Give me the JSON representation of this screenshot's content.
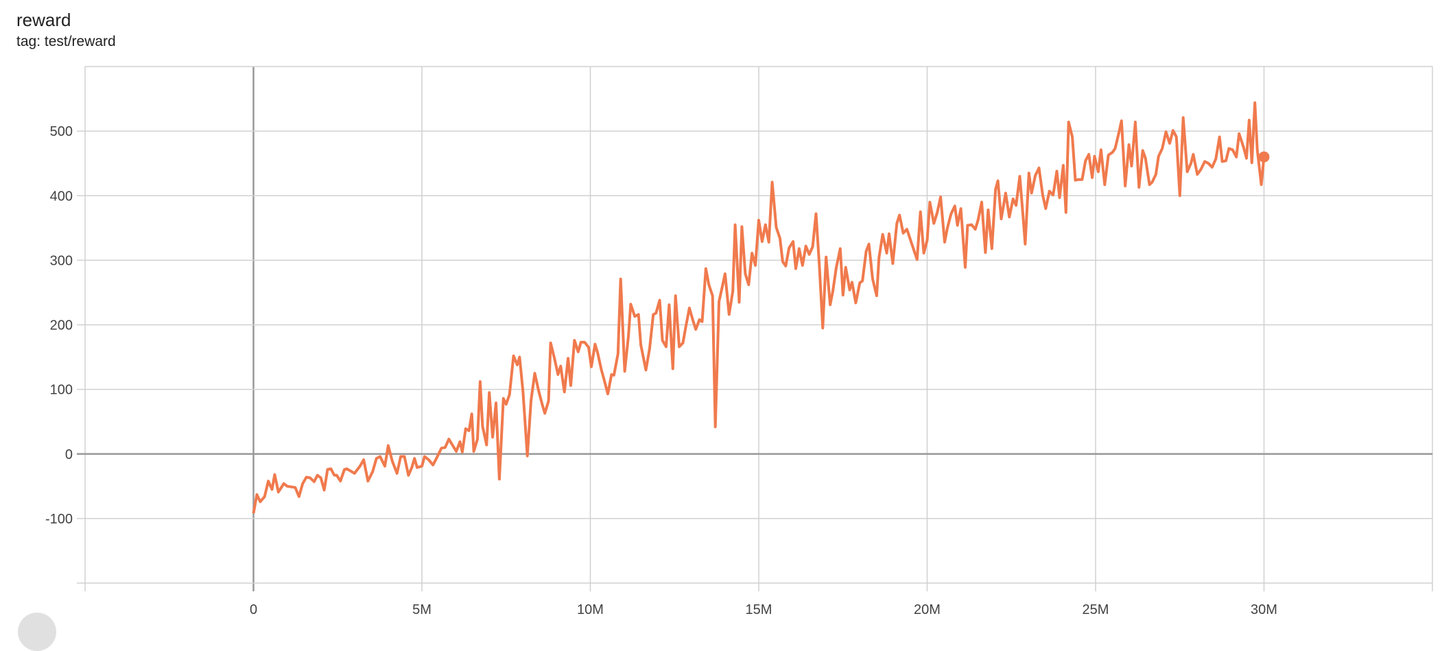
{
  "header": {
    "title": "reward",
    "subtitle": "tag: test/reward"
  },
  "colors": {
    "series": "#f07a4d",
    "grid": "#d0d0d0",
    "axis_zero": "#999999"
  },
  "chart_data": {
    "type": "line",
    "title": "reward",
    "subtitle": "tag: test/reward",
    "xlabel": "",
    "ylabel": "",
    "xlim": [
      -5000000,
      35000000
    ],
    "ylim": [
      -200,
      600
    ],
    "grid": true,
    "x_ticks": [
      0,
      5000000,
      10000000,
      15000000,
      20000000,
      25000000,
      30000000
    ],
    "x_tick_labels": [
      "0",
      "5M",
      "10M",
      "15M",
      "20M",
      "25M",
      "30M"
    ],
    "y_ticks": [
      -100,
      0,
      100,
      200,
      300,
      400,
      500
    ],
    "y_tick_labels": [
      "-100",
      "0",
      "100",
      "200",
      "300",
      "400",
      "500"
    ],
    "series": [
      {
        "x_millions": [
          0,
          0.1,
          0.2,
          0.33,
          0.44,
          0.55,
          0.63,
          0.74,
          0.9,
          1.0,
          1.24,
          1.35,
          1.46,
          1.57,
          1.68,
          1.8,
          1.9,
          2.0,
          2.1,
          2.2,
          2.3,
          2.4,
          2.47,
          2.58,
          2.7,
          2.77,
          3.0,
          3.16,
          3.27,
          3.4,
          3.54,
          3.65,
          3.76,
          3.9,
          4.0,
          4.12,
          4.26,
          4.37,
          4.48,
          4.6,
          4.7,
          4.78,
          4.86,
          5.0,
          5.08,
          5.2,
          5.33,
          5.44,
          5.58,
          5.69,
          5.8,
          6.02,
          6.13,
          6.2,
          6.3,
          6.4,
          6.48,
          6.54,
          6.65,
          6.73,
          6.8,
          6.92,
          7.0,
          7.1,
          7.2,
          7.3,
          7.42,
          7.5,
          7.6,
          7.72,
          7.83,
          7.9,
          8.0,
          8.13,
          8.24,
          8.35,
          8.46,
          8.57,
          8.65,
          8.76,
          8.82,
          8.93,
          9.04,
          9.12,
          9.23,
          9.34,
          9.42,
          9.53,
          9.64,
          9.72,
          9.83,
          9.95,
          10.03,
          10.14,
          10.22,
          10.33,
          10.4,
          10.52,
          10.63,
          10.7,
          10.82,
          10.9,
          11.02,
          11.13,
          11.2,
          11.32,
          11.43,
          11.5,
          11.65,
          11.76,
          11.87,
          11.95,
          12.06,
          12.14,
          12.25,
          12.34,
          12.45,
          12.53,
          12.64,
          12.75,
          12.83,
          12.94,
          13.05,
          13.13,
          13.24,
          13.32,
          13.43,
          13.52,
          13.63,
          13.71,
          13.82,
          13.93,
          14.0,
          14.12,
          14.23,
          14.3,
          14.42,
          14.5,
          14.6,
          14.7,
          14.8,
          14.9,
          15.0,
          15.1,
          15.2,
          15.3,
          15.4,
          15.52,
          15.63,
          15.71,
          15.8,
          15.9,
          16.02,
          16.1,
          16.2,
          16.3,
          16.4,
          16.5,
          16.6,
          16.7,
          16.8,
          16.9,
          17.0,
          17.12,
          17.2,
          17.3,
          17.42,
          17.5,
          17.58,
          17.7,
          17.77,
          17.88,
          18.0,
          18.08,
          18.19,
          18.27,
          18.38,
          18.5,
          18.57,
          18.68,
          18.8,
          18.87,
          18.98,
          19.1,
          19.18,
          19.29,
          19.4,
          19.5,
          19.59,
          19.7,
          19.8,
          19.9,
          20.0,
          20.08,
          20.2,
          20.3,
          20.4,
          20.52,
          20.6,
          20.71,
          20.82,
          20.9,
          21.0,
          21.13,
          21.2,
          21.32,
          21.43,
          21.51,
          21.62,
          21.73,
          21.81,
          21.92,
          22.03,
          22.1,
          22.2,
          22.33,
          22.44,
          22.55,
          22.64,
          22.75,
          22.86,
          22.91,
          23.02,
          23.1,
          23.21,
          23.32,
          23.43,
          23.52,
          23.63,
          23.74,
          23.85,
          23.93,
          24.04,
          24.12,
          24.2,
          24.31,
          24.4,
          24.5,
          24.6,
          24.7,
          24.8,
          24.9,
          24.97,
          25.08,
          25.16,
          25.27,
          25.38,
          25.5,
          25.58,
          25.69,
          25.77,
          25.88,
          25.99,
          26.07,
          26.18,
          26.29,
          26.4,
          26.48,
          26.6,
          26.68,
          26.79,
          26.87,
          26.98,
          27.09,
          27.2,
          27.3,
          27.4,
          27.5,
          27.6,
          27.72,
          27.83,
          27.9,
          28.02,
          28.13,
          28.24,
          28.35,
          28.46,
          28.57,
          28.68,
          28.76,
          28.87,
          28.96,
          29.07,
          29.18,
          29.26,
          29.4,
          29.48,
          29.56,
          29.64,
          29.73,
          29.8,
          29.92,
          30.0
        ],
        "y": [
          -92,
          -63,
          -74,
          -66,
          -42,
          -55,
          -32,
          -59,
          -46,
          -50,
          -52,
          -66,
          -46,
          -36,
          -37,
          -43,
          -33,
          -37,
          -56,
          -24,
          -23,
          -33,
          -33,
          -42,
          -24,
          -23,
          -30,
          -19,
          -9,
          -42,
          -27,
          -7,
          -4,
          -19,
          13,
          -11,
          -30,
          -4,
          -4,
          -33,
          -21,
          -7,
          -21,
          -19,
          -4,
          -9,
          -17,
          -6,
          9,
          10,
          23,
          4,
          19,
          3,
          39,
          36,
          62,
          4,
          23,
          112,
          43,
          14,
          95,
          26,
          79,
          -39,
          86,
          77,
          92,
          152,
          138,
          150,
          97,
          -3,
          83,
          125,
          99,
          77,
          63,
          82,
          172,
          149,
          123,
          136,
          96,
          148,
          106,
          176,
          158,
          173,
          173,
          165,
          135,
          170,
          156,
          130,
          117,
          93,
          123,
          122,
          155,
          271,
          128,
          182,
          232,
          213,
          216,
          169,
          130,
          163,
          216,
          218,
          238,
          176,
          166,
          231,
          132,
          245,
          166,
          172,
          196,
          226,
          206,
          193,
          208,
          205,
          287,
          262,
          245,
          42,
          236,
          262,
          279,
          216,
          252,
          355,
          235,
          352,
          279,
          262,
          311,
          292,
          362,
          329,
          355,
          328,
          421,
          351,
          334,
          298,
          291,
          319,
          329,
          287,
          318,
          292,
          322,
          309,
          321,
          372,
          291,
          195,
          305,
          231,
          252,
          288,
          318,
          246,
          289,
          254,
          266,
          234,
          265,
          268,
          314,
          325,
          271,
          245,
          304,
          340,
          311,
          341,
          295,
          357,
          370,
          342,
          348,
          332,
          318,
          301,
          375,
          311,
          331,
          390,
          357,
          374,
          398,
          328,
          350,
          372,
          384,
          354,
          380,
          289,
          354,
          355,
          348,
          362,
          390,
          312,
          378,
          318,
          410,
          423,
          364,
          404,
          367,
          395,
          385,
          430,
          360,
          325,
          435,
          404,
          431,
          443,
          401,
          380,
          407,
          401,
          438,
          397,
          447,
          374,
          514,
          491,
          424,
          425,
          425,
          454,
          464,
          428,
          461,
          437,
          471,
          417,
          463,
          467,
          473,
          497,
          516,
          415,
          479,
          446,
          514,
          413,
          470,
          458,
          417,
          421,
          433,
          461,
          473,
          499,
          481,
          501,
          491,
          400,
          521,
          437,
          450,
          464,
          433,
          441,
          453,
          450,
          444,
          457,
          491,
          453,
          454,
          473,
          471,
          460,
          496,
          474,
          458,
          517,
          451,
          544,
          471,
          417,
          460
        ]
      }
    ]
  }
}
